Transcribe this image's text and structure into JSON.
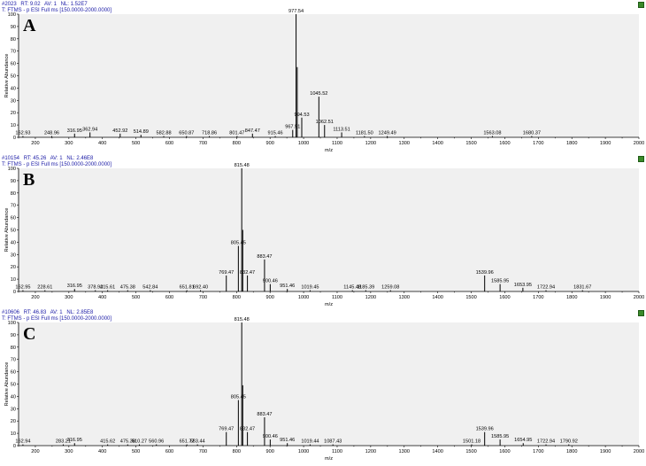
{
  "panels": [
    {
      "letter": "A",
      "header": {
        "scan": "#2023",
        "rt": "RT: 9.02",
        "av": "AV: 1",
        "nl": "NL: 1.52E7",
        "filter": "T: FTMS - p ESI Full ms [150.0000-2000.0000]"
      }
    },
    {
      "letter": "B",
      "header": {
        "scan": "#10154",
        "rt": "RT: 45.26",
        "av": "AV: 1",
        "nl": "NL: 2.46E8",
        "filter": "T: FTMS - p ESI Full ms [150.0000-2000.0000]"
      }
    },
    {
      "letter": "C",
      "header": {
        "scan": "#10606",
        "rt": "RT: 46.83",
        "av": "AV: 1",
        "nl": "NL: 2.85E8",
        "filter": "T: FTMS - p ESI Full ms [150.0000-2000.0000]"
      }
    }
  ],
  "chart_data": [
    {
      "type": "bar",
      "xlabel": "m/z",
      "ylabel": "Relative Abundance",
      "xlim": [
        150,
        2000
      ],
      "ylim": [
        0,
        100
      ],
      "xticks": [
        200,
        300,
        400,
        500,
        600,
        700,
        800,
        900,
        1000,
        1100,
        1200,
        1300,
        1400,
        1500,
        1600,
        1700,
        1800,
        1900,
        2000
      ],
      "yticks": [
        0,
        10,
        20,
        30,
        40,
        50,
        60,
        70,
        80,
        90,
        100
      ],
      "peaks": [
        {
          "x": 162.93,
          "y": 1,
          "label": "162.93"
        },
        {
          "x": 248.96,
          "y": 1,
          "label": "248.96"
        },
        {
          "x": 316.95,
          "y": 3,
          "label": "316.95"
        },
        {
          "x": 362.94,
          "y": 4,
          "label": "362.94"
        },
        {
          "x": 452.92,
          "y": 3,
          "label": "452.92"
        },
        {
          "x": 514.89,
          "y": 2,
          "label": "514.89"
        },
        {
          "x": 582.88,
          "y": 1,
          "label": "582.88"
        },
        {
          "x": 650.87,
          "y": 1,
          "label": "650.87"
        },
        {
          "x": 718.86,
          "y": 1,
          "label": "718.86"
        },
        {
          "x": 801.47,
          "y": 1,
          "label": "801.47"
        },
        {
          "x": 847.47,
          "y": 3,
          "label": "847.47"
        },
        {
          "x": 915.46,
          "y": 1,
          "label": "915.46"
        },
        {
          "x": 967.51,
          "y": 6,
          "label": "967.51"
        },
        {
          "x": 977.54,
          "y": 100,
          "label": "977.54"
        },
        {
          "x": 981.0,
          "y": 57,
          "label": ""
        },
        {
          "x": 994.53,
          "y": 16,
          "label": "994.53"
        },
        {
          "x": 1045.52,
          "y": 33,
          "label": "1045.52"
        },
        {
          "x": 1062.51,
          "y": 10,
          "label": "1062.51"
        },
        {
          "x": 1113.51,
          "y": 4,
          "label": "1113.51"
        },
        {
          "x": 1181.5,
          "y": 1,
          "label": "1181.50"
        },
        {
          "x": 1249.49,
          "y": 1,
          "label": "1249.49"
        },
        {
          "x": 1563.08,
          "y": 1,
          "label": "1563.08"
        },
        {
          "x": 1680.37,
          "y": 1,
          "label": "1680.37"
        }
      ]
    },
    {
      "type": "bar",
      "xlabel": "m/z",
      "ylabel": "Relative Abundance",
      "xlim": [
        150,
        2000
      ],
      "ylim": [
        0,
        100
      ],
      "xticks": [
        200,
        300,
        400,
        500,
        600,
        700,
        800,
        900,
        1000,
        1100,
        1200,
        1300,
        1400,
        1500,
        1600,
        1700,
        1800,
        1900,
        2000
      ],
      "yticks": [
        0,
        10,
        20,
        30,
        40,
        50,
        60,
        70,
        80,
        90,
        100
      ],
      "peaks": [
        {
          "x": 162.95,
          "y": 1,
          "label": "162.95"
        },
        {
          "x": 228.61,
          "y": 1,
          "label": "228.61"
        },
        {
          "x": 316.95,
          "y": 2,
          "label": "316.95"
        },
        {
          "x": 378.92,
          "y": 1,
          "label": "378.92"
        },
        {
          "x": 415.61,
          "y": 1,
          "label": "415.61"
        },
        {
          "x": 475.38,
          "y": 1,
          "label": "475.38"
        },
        {
          "x": 542.84,
          "y": 1,
          "label": "542.84"
        },
        {
          "x": 651.81,
          "y": 1,
          "label": "651.81"
        },
        {
          "x": 692.4,
          "y": 1,
          "label": "692.40"
        },
        {
          "x": 769.47,
          "y": 13,
          "label": "769.47"
        },
        {
          "x": 805.45,
          "y": 37,
          "label": "805.45"
        },
        {
          "x": 815.48,
          "y": 100,
          "label": "815.48"
        },
        {
          "x": 818.5,
          "y": 50,
          "label": ""
        },
        {
          "x": 832.47,
          "y": 13,
          "label": "832.47"
        },
        {
          "x": 883.47,
          "y": 26,
          "label": "883.47"
        },
        {
          "x": 900.46,
          "y": 6,
          "label": "900.46"
        },
        {
          "x": 951.46,
          "y": 2,
          "label": "951.46"
        },
        {
          "x": 1019.45,
          "y": 1,
          "label": "1019.45"
        },
        {
          "x": 1145.48,
          "y": 1,
          "label": "1145.48"
        },
        {
          "x": 1185.39,
          "y": 1,
          "label": "1185.39"
        },
        {
          "x": 1259.08,
          "y": 1,
          "label": "1259.08"
        },
        {
          "x": 1539.96,
          "y": 13,
          "label": "1539.96"
        },
        {
          "x": 1585.95,
          "y": 6,
          "label": "1585.95"
        },
        {
          "x": 1653.95,
          "y": 3,
          "label": "1653.95"
        },
        {
          "x": 1722.94,
          "y": 1,
          "label": "1722.94"
        },
        {
          "x": 1831.67,
          "y": 1,
          "label": "1831.67"
        }
      ]
    },
    {
      "type": "bar",
      "xlabel": "m/z",
      "ylabel": "Relative Abundance",
      "xlim": [
        150,
        2000
      ],
      "ylim": [
        0,
        100
      ],
      "xticks": [
        200,
        300,
        400,
        500,
        600,
        700,
        800,
        900,
        1000,
        1100,
        1200,
        1300,
        1400,
        1500,
        1600,
        1700,
        1800,
        1900,
        2000
      ],
      "yticks": [
        0,
        10,
        20,
        30,
        40,
        50,
        60,
        70,
        80,
        90,
        100
      ],
      "peaks": [
        {
          "x": 162.94,
          "y": 1,
          "label": "162.94"
        },
        {
          "x": 283.21,
          "y": 1,
          "label": "283.21"
        },
        {
          "x": 316.95,
          "y": 2,
          "label": "316.95"
        },
        {
          "x": 415.62,
          "y": 1,
          "label": "415.62"
        },
        {
          "x": 475.38,
          "y": 1,
          "label": "475.38"
        },
        {
          "x": 510.27,
          "y": 1,
          "label": "510.27"
        },
        {
          "x": 560.96,
          "y": 1,
          "label": "560.96"
        },
        {
          "x": 651.77,
          "y": 1,
          "label": "651.77"
        },
        {
          "x": 683.44,
          "y": 1,
          "label": "683.44"
        },
        {
          "x": 769.47,
          "y": 11,
          "label": "769.47"
        },
        {
          "x": 805.45,
          "y": 37,
          "label": "805.45"
        },
        {
          "x": 815.48,
          "y": 100,
          "label": "815.48"
        },
        {
          "x": 818.5,
          "y": 49,
          "label": ""
        },
        {
          "x": 832.47,
          "y": 11,
          "label": "832.47"
        },
        {
          "x": 883.47,
          "y": 23,
          "label": "883.47"
        },
        {
          "x": 900.46,
          "y": 5,
          "label": "900.46"
        },
        {
          "x": 951.46,
          "y": 2,
          "label": "951.46"
        },
        {
          "x": 1019.44,
          "y": 1,
          "label": "1019.44"
        },
        {
          "x": 1087.43,
          "y": 1,
          "label": "1087.43"
        },
        {
          "x": 1501.18,
          "y": 1,
          "label": "1501.18"
        },
        {
          "x": 1539.96,
          "y": 11,
          "label": "1539.96"
        },
        {
          "x": 1585.95,
          "y": 5,
          "label": "1585.95"
        },
        {
          "x": 1654.95,
          "y": 2,
          "label": "1654.95"
        },
        {
          "x": 1722.94,
          "y": 1,
          "label": "1722.94"
        },
        {
          "x": 1790.92,
          "y": 1,
          "label": "1790.92"
        }
      ]
    }
  ]
}
